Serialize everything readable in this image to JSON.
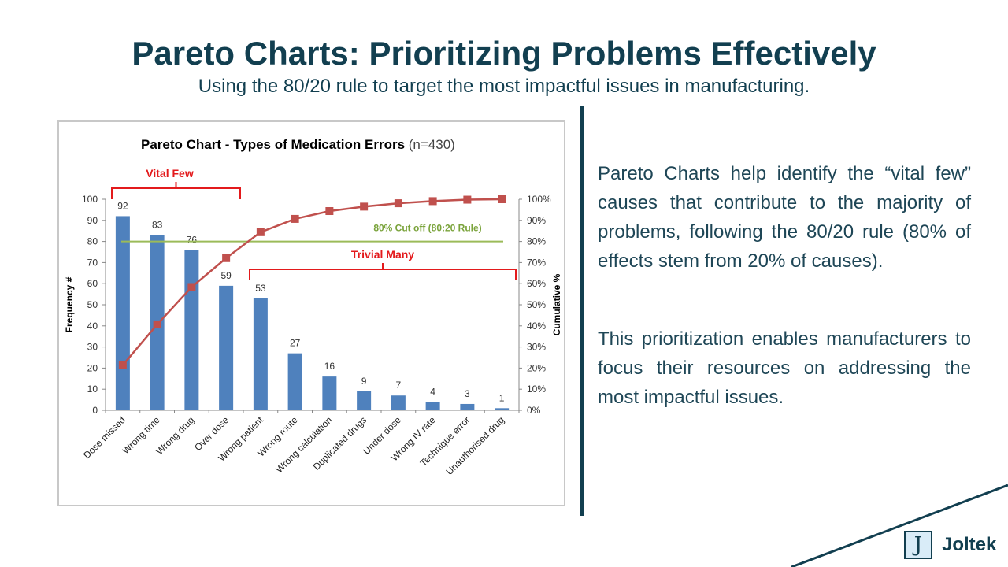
{
  "slide": {
    "title": "Pareto Charts: Prioritizing Problems Effectively",
    "subtitle": "Using the 80/20 rule to target the most impactful issues in manufacturing.",
    "paragraph_1": "Pareto Charts help identify the “vital few” causes that contribute to the majority of problems, following the 80/20 rule (80% of effects stem from 20% of causes).",
    "paragraph_2": "This prioritization enables manufacturers to focus their resources on addressing the most impactful issues.",
    "logo_mark": "J",
    "logo_text": "Joltek"
  },
  "colors": {
    "primary": "#123f50",
    "bar": "#4f81bd",
    "cumulative_line": "#c0504d",
    "cutoff_line": "#9bbb59",
    "bracket": "#e31a1c"
  },
  "chart_data": {
    "type": "bar",
    "title": "Pareto Chart - Types of Medication Errors",
    "title_suffix": "(n=430)",
    "xlabel": "",
    "ylabel": "Frequency #",
    "y2label": "Cumulative %",
    "ylim": [
      0,
      100
    ],
    "y2lim": [
      0,
      100
    ],
    "yticks": [
      "0",
      "10",
      "20",
      "30",
      "40",
      "50",
      "60",
      "70",
      "80",
      "90",
      "100"
    ],
    "y2ticks": [
      "0%",
      "10%",
      "20%",
      "30%",
      "40%",
      "50%",
      "60%",
      "70%",
      "80%",
      "90%",
      "100%"
    ],
    "categories": [
      "Dose missed",
      "Wrong time",
      "Wrong drug",
      "Over dose",
      "Wrong patient",
      "Wrong route",
      "Wrong calculation",
      "Duplicated drugs",
      "Under dose",
      "Wrong IV rate",
      "Technique error",
      "Unauthorised drug"
    ],
    "series": [
      {
        "name": "Frequency #",
        "type": "bar",
        "axis": "left",
        "values": [
          92,
          83,
          76,
          59,
          53,
          27,
          16,
          9,
          7,
          4,
          3,
          1
        ]
      },
      {
        "name": "Cumulative %",
        "type": "line",
        "axis": "right",
        "values": [
          21.4,
          40.7,
          58.4,
          72.1,
          84.4,
          90.7,
          94.4,
          96.5,
          98.1,
          99.1,
          99.8,
          100
        ]
      }
    ],
    "cutoff": {
      "label": "80% Cut off  (80:20 Rule)",
      "value": 80
    },
    "annotations": {
      "vital_few": {
        "label": "Vital Few",
        "from": 0,
        "to": 3
      },
      "trivial_many": {
        "label": "Trivial Many",
        "from": 4,
        "to": 11
      }
    }
  }
}
